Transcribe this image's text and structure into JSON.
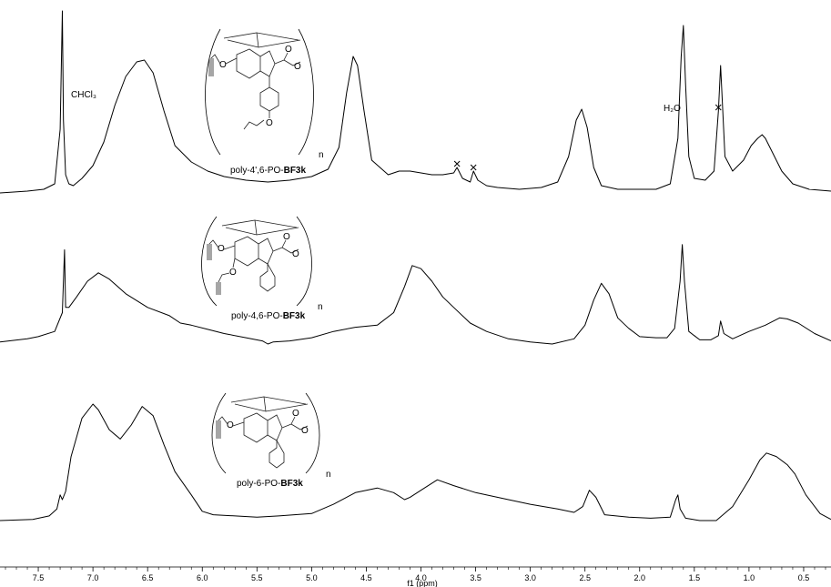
{
  "chart_data": {
    "type": "line",
    "title": "",
    "xlabel": "f1 (ppm)",
    "ylabel": "",
    "xlim": [
      7.85,
      0.25
    ],
    "x_reversed": true,
    "grid": false,
    "x_ticks": [
      7.5,
      7.0,
      6.5,
      6.0,
      5.5,
      5.0,
      4.5,
      4.0,
      3.5,
      3.0,
      2.5,
      2.0,
      1.5,
      1.0,
      0.5
    ],
    "x_tick_labels": [
      "7.5",
      "7.0",
      "6.5",
      "6.0",
      "5.5",
      "5.0",
      "4.5",
      "4.0",
      "3.5",
      "3.0",
      "2.5",
      "2.0",
      "1.5",
      "1.0",
      "0.5"
    ],
    "series": [
      {
        "name": "poly-4',6-PO-BF3k",
        "x": [
          7.85,
          7.6,
          7.45,
          7.35,
          7.3,
          7.28,
          7.27,
          7.25,
          7.22,
          7.18,
          7.1,
          7.0,
          6.9,
          6.8,
          6.7,
          6.6,
          6.53,
          6.45,
          6.35,
          6.25,
          6.2,
          6.1,
          5.95,
          5.8,
          5.6,
          5.4,
          5.2,
          5.0,
          4.85,
          4.75,
          4.68,
          4.62,
          4.58,
          4.52,
          4.45,
          4.3,
          4.2,
          4.1,
          4.0,
          3.9,
          3.8,
          3.7,
          3.67,
          3.62,
          3.55,
          3.52,
          3.48,
          3.4,
          3.3,
          3.1,
          2.9,
          2.75,
          2.65,
          2.58,
          2.53,
          2.48,
          2.42,
          2.35,
          2.2,
          2.0,
          1.85,
          1.72,
          1.65,
          1.62,
          1.6,
          1.58,
          1.55,
          1.5,
          1.4,
          1.32,
          1.28,
          1.26,
          1.22,
          1.15,
          1.05,
          0.98,
          0.92,
          0.88,
          0.85,
          0.8,
          0.7,
          0.6,
          0.45,
          0.25
        ],
        "values": [
          0.0,
          0.01,
          0.02,
          0.05,
          0.35,
          1.0,
          0.4,
          0.1,
          0.05,
          0.04,
          0.08,
          0.15,
          0.28,
          0.48,
          0.64,
          0.72,
          0.73,
          0.66,
          0.45,
          0.26,
          0.23,
          0.17,
          0.12,
          0.09,
          0.07,
          0.06,
          0.07,
          0.09,
          0.13,
          0.25,
          0.55,
          0.75,
          0.7,
          0.45,
          0.18,
          0.1,
          0.12,
          0.12,
          0.11,
          0.1,
          0.1,
          0.11,
          0.14,
          0.08,
          0.06,
          0.12,
          0.07,
          0.04,
          0.03,
          0.02,
          0.03,
          0.06,
          0.2,
          0.4,
          0.46,
          0.36,
          0.14,
          0.04,
          0.02,
          0.02,
          0.02,
          0.05,
          0.3,
          0.75,
          0.92,
          0.6,
          0.2,
          0.08,
          0.07,
          0.12,
          0.45,
          0.7,
          0.2,
          0.12,
          0.18,
          0.26,
          0.3,
          0.32,
          0.3,
          0.24,
          0.12,
          0.05,
          0.02,
          0.01
        ]
      },
      {
        "name": "poly-4,6-PO-BF3k",
        "x": [
          7.85,
          7.6,
          7.5,
          7.35,
          7.28,
          7.26,
          7.25,
          7.22,
          7.15,
          7.05,
          6.95,
          6.85,
          6.7,
          6.5,
          6.3,
          6.2,
          6.1,
          5.95,
          5.8,
          5.6,
          5.45,
          5.4,
          5.35,
          5.2,
          5.0,
          4.8,
          4.6,
          4.4,
          4.25,
          4.15,
          4.08,
          4.0,
          3.9,
          3.8,
          3.7,
          3.55,
          3.4,
          3.2,
          3.0,
          2.8,
          2.6,
          2.5,
          2.42,
          2.35,
          2.28,
          2.2,
          2.1,
          2.0,
          1.85,
          1.75,
          1.68,
          1.63,
          1.61,
          1.59,
          1.55,
          1.45,
          1.35,
          1.28,
          1.26,
          1.23,
          1.15,
          1.0,
          0.85,
          0.72,
          0.65,
          0.55,
          0.4,
          0.25
        ],
        "values": [
          0.02,
          0.05,
          0.07,
          0.12,
          0.3,
          0.9,
          0.35,
          0.35,
          0.45,
          0.6,
          0.68,
          0.62,
          0.48,
          0.35,
          0.27,
          0.2,
          0.18,
          0.14,
          0.1,
          0.06,
          0.03,
          0.0,
          0.02,
          0.03,
          0.06,
          0.12,
          0.16,
          0.18,
          0.3,
          0.55,
          0.75,
          0.72,
          0.6,
          0.45,
          0.35,
          0.2,
          0.12,
          0.05,
          0.02,
          0.0,
          0.05,
          0.18,
          0.42,
          0.58,
          0.48,
          0.25,
          0.15,
          0.07,
          0.06,
          0.06,
          0.15,
          0.6,
          0.95,
          0.6,
          0.12,
          0.04,
          0.04,
          0.08,
          0.22,
          0.1,
          0.05,
          0.12,
          0.18,
          0.25,
          0.24,
          0.2,
          0.1,
          0.03
        ]
      },
      {
        "name": "poly-6-PO-BF3k",
        "x": [
          7.85,
          7.55,
          7.4,
          7.33,
          7.3,
          7.28,
          7.25,
          7.2,
          7.1,
          7.0,
          6.95,
          6.85,
          6.75,
          6.65,
          6.55,
          6.45,
          6.35,
          6.25,
          6.1,
          6.0,
          5.9,
          5.7,
          5.5,
          5.3,
          5.0,
          4.8,
          4.6,
          4.4,
          4.25,
          4.15,
          4.1,
          4.0,
          3.85,
          3.7,
          3.5,
          3.2,
          3.0,
          2.75,
          2.6,
          2.52,
          2.46,
          2.4,
          2.32,
          2.1,
          1.9,
          1.72,
          1.67,
          1.65,
          1.63,
          1.58,
          1.45,
          1.3,
          1.15,
          1.0,
          0.9,
          0.84,
          0.75,
          0.65,
          0.58,
          0.48,
          0.35,
          0.25
        ],
        "values": [
          0.0,
          0.01,
          0.04,
          0.1,
          0.22,
          0.18,
          0.25,
          0.55,
          0.88,
          1.0,
          0.95,
          0.78,
          0.7,
          0.82,
          0.98,
          0.9,
          0.65,
          0.42,
          0.22,
          0.08,
          0.05,
          0.04,
          0.03,
          0.04,
          0.06,
          0.14,
          0.24,
          0.28,
          0.24,
          0.18,
          0.2,
          0.26,
          0.35,
          0.3,
          0.24,
          0.18,
          0.14,
          0.1,
          0.07,
          0.12,
          0.26,
          0.2,
          0.05,
          0.03,
          0.02,
          0.03,
          0.18,
          0.22,
          0.1,
          0.02,
          0.0,
          0.0,
          0.12,
          0.35,
          0.52,
          0.58,
          0.55,
          0.48,
          0.4,
          0.22,
          0.06,
          0.01
        ]
      }
    ],
    "annotations": {
      "chcl3": "CHCl₃",
      "h2o": "H₂O"
    },
    "impurity_marks": [
      {
        "x": 3.67,
        "series": 0,
        "symbol": "x"
      },
      {
        "x": 3.52,
        "series": 0,
        "symbol": "x"
      },
      {
        "x": 1.28,
        "series": 0,
        "symbol": "x"
      }
    ]
  },
  "structures": {
    "top_caption_prefix": "poly-4',6-PO-",
    "middle_caption_prefix": "poly-4,6-PO-",
    "bottom_caption_prefix": "poly-6-PO-",
    "caption_bold": "BF3k",
    "n_label": "n",
    "atom_o": "O"
  }
}
